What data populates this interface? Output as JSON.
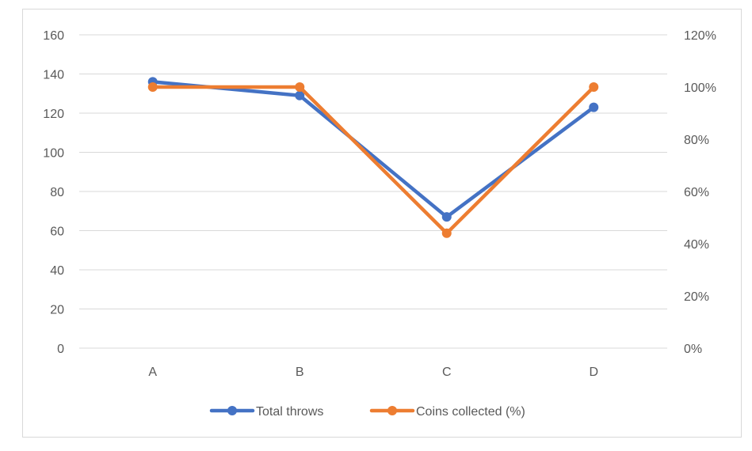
{
  "chart_data": {
    "type": "line",
    "categories": [
      "A",
      "B",
      "C",
      "D"
    ],
    "series": [
      {
        "name": "Total throws",
        "axis": "left",
        "values": [
          136,
          129,
          67,
          123
        ],
        "color": "#4472C4"
      },
      {
        "name": "Coins collected (%)",
        "axis": "right",
        "values": [
          1.0,
          1.0,
          0.44,
          1.0
        ],
        "color": "#ED7D31"
      }
    ],
    "y_left": {
      "min": 0,
      "max": 160,
      "ticks": [
        {
          "value": 0,
          "label": "0"
        },
        {
          "value": 20,
          "label": "20"
        },
        {
          "value": 40,
          "label": "40"
        },
        {
          "value": 60,
          "label": "60"
        },
        {
          "value": 80,
          "label": "80"
        },
        {
          "value": 100,
          "label": "100"
        },
        {
          "value": 120,
          "label": "120"
        },
        {
          "value": 140,
          "label": "140"
        },
        {
          "value": 160,
          "label": "160"
        }
      ]
    },
    "y_right": {
      "min": 0,
      "max": 1.2,
      "ticks": [
        {
          "value": 0,
          "label": "0%"
        },
        {
          "value": 0.2,
          "label": "20%"
        },
        {
          "value": 0.4,
          "label": "40%"
        },
        {
          "value": 0.6,
          "label": "60%"
        },
        {
          "value": 0.8,
          "label": "80%"
        },
        {
          "value": 1.0,
          "label": "100%"
        },
        {
          "value": 1.2,
          "label": "120%"
        }
      ]
    },
    "grid": true,
    "gridline_color": "#d9d9d9",
    "legend_position": "bottom",
    "title": "",
    "xlabel": "",
    "ylabel": ""
  }
}
